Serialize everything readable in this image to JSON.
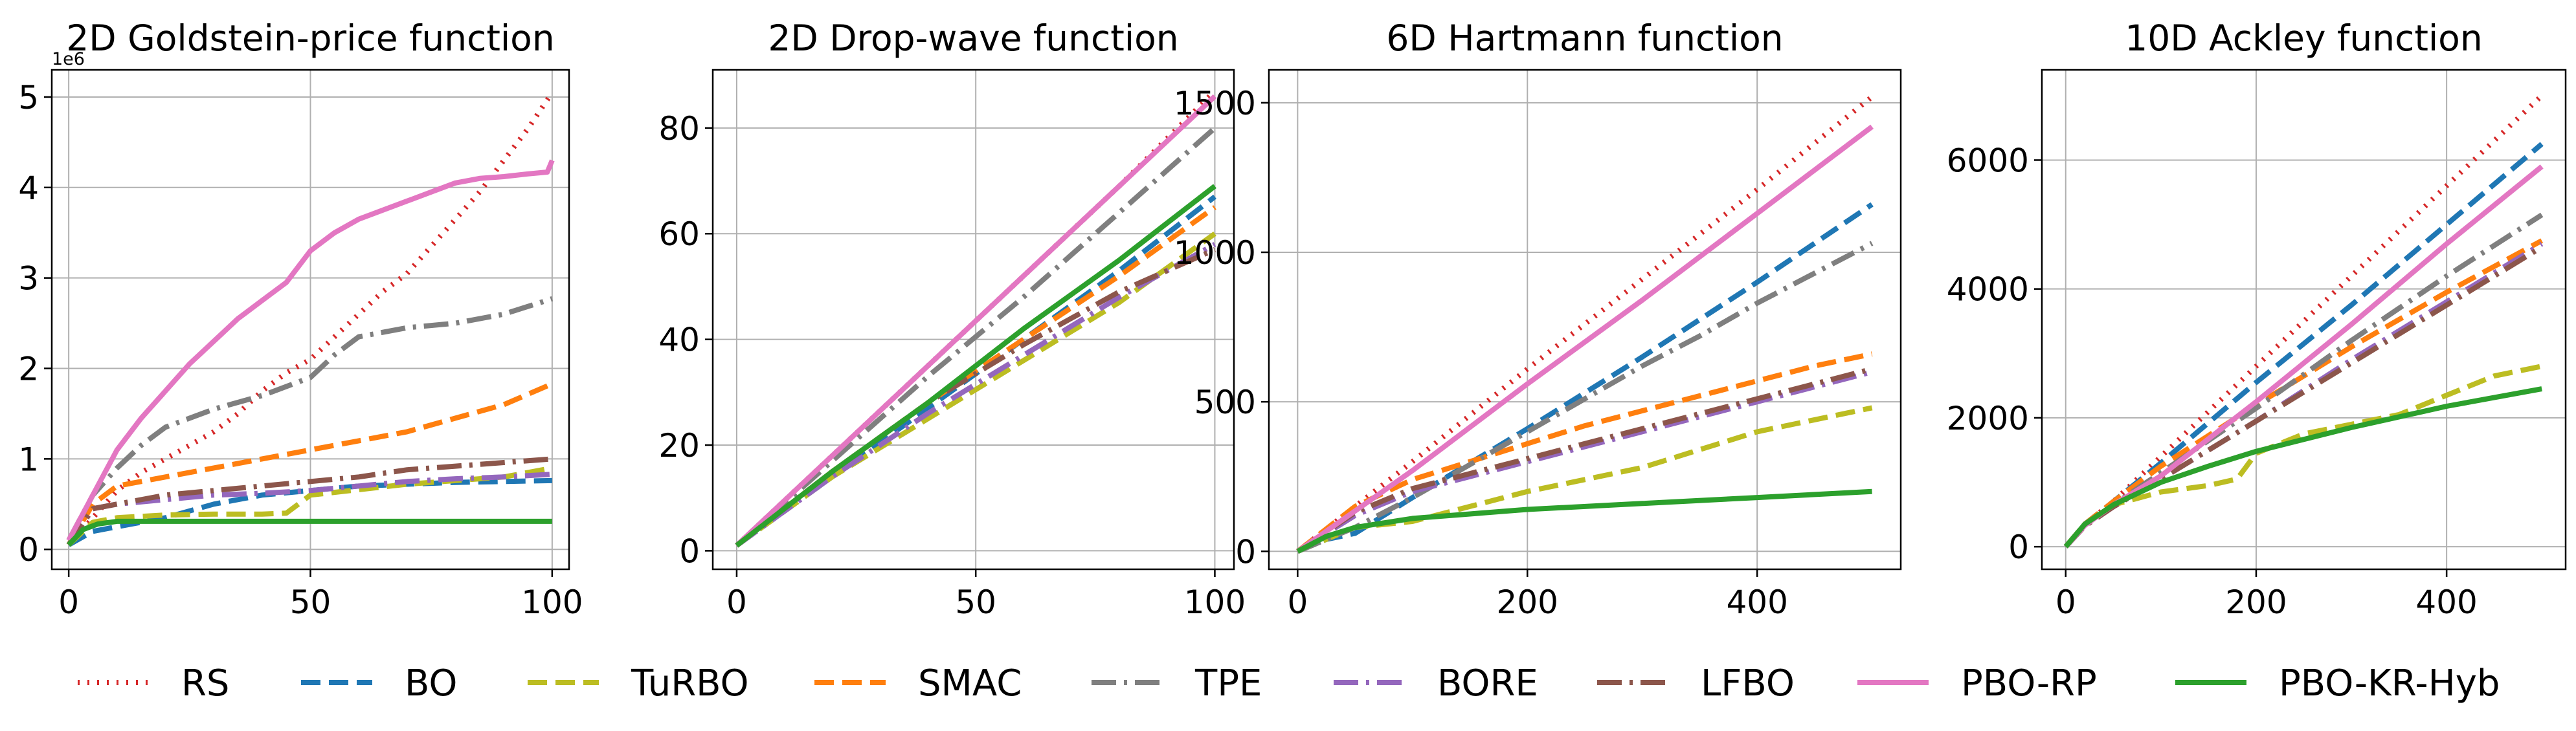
{
  "figure": {
    "series_styles": [
      {
        "name": "RS",
        "color": "#d62728",
        "dash": "3 12",
        "width": 8
      },
      {
        "name": "BO",
        "color": "#1f77b4",
        "dash": "30 13",
        "width": 8
      },
      {
        "name": "TuRBO",
        "color": "#bcbd22",
        "dash": "30 13",
        "width": 8
      },
      {
        "name": "SMAC",
        "color": "#ff7f0e",
        "dash": "30 13",
        "width": 8
      },
      {
        "name": "TPE",
        "color": "#7f7f7f",
        "dash": "38 12 5 12",
        "width": 8
      },
      {
        "name": "BORE",
        "color": "#9467bd",
        "dash": "38 12 5 12",
        "width": 8
      },
      {
        "name": "LFBO",
        "color": "#8c564b",
        "dash": "38 12 5 12",
        "width": 8
      },
      {
        "name": "PBO-RP",
        "color": "#e377c2",
        "dash": "",
        "width": 8
      },
      {
        "name": "PBO-KR-Hyb",
        "color": "#2ca02c",
        "dash": "",
        "width": 8
      }
    ],
    "legend": [
      "RS",
      "BO",
      "TuRBO",
      "SMAC",
      "TPE",
      "BORE",
      "LFBO",
      "PBO-RP",
      "PBO-KR-Hyb"
    ]
  },
  "chart_data": [
    {
      "type": "line",
      "title": "2D Goldstein-price function",
      "xlabel": "",
      "ylabel": "",
      "xlim": [
        -3.5,
        103.5
      ],
      "ylim": [
        -0.22,
        5.3
      ],
      "xticks": [
        0,
        50,
        100
      ],
      "yticks": [
        0,
        1,
        2,
        3,
        4,
        5
      ],
      "y_offset_label": "1e6",
      "grid": true,
      "series": [
        {
          "name": "RS",
          "x": [
            0,
            5,
            10,
            15,
            20,
            25,
            30,
            35,
            40,
            45,
            50,
            55,
            60,
            65,
            70,
            75,
            80,
            85,
            90,
            95,
            100
          ],
          "values": [
            0.05,
            0.35,
            0.65,
            0.85,
            1.0,
            1.15,
            1.3,
            1.5,
            1.75,
            1.95,
            2.1,
            2.35,
            2.6,
            2.85,
            3.05,
            3.35,
            3.65,
            3.95,
            4.3,
            4.65,
            5.05
          ]
        },
        {
          "name": "BO",
          "x": [
            0,
            5,
            10,
            20,
            30,
            40,
            50,
            60,
            70,
            80,
            90,
            100
          ],
          "values": [
            0.05,
            0.2,
            0.25,
            0.35,
            0.5,
            0.6,
            0.65,
            0.7,
            0.72,
            0.74,
            0.75,
            0.76
          ]
        },
        {
          "name": "TuRBO",
          "x": [
            0,
            5,
            10,
            20,
            30,
            40,
            45,
            50,
            60,
            70,
            80,
            90,
            100
          ],
          "values": [
            0.05,
            0.3,
            0.35,
            0.38,
            0.39,
            0.39,
            0.4,
            0.6,
            0.66,
            0.72,
            0.76,
            0.8,
            0.9
          ]
        },
        {
          "name": "SMAC",
          "x": [
            0,
            5,
            10,
            20,
            30,
            40,
            50,
            60,
            70,
            80,
            90,
            100
          ],
          "values": [
            0.05,
            0.5,
            0.7,
            0.8,
            0.9,
            1.0,
            1.1,
            1.2,
            1.3,
            1.45,
            1.6,
            1.83
          ]
        },
        {
          "name": "TPE",
          "x": [
            0,
            5,
            10,
            15,
            20,
            30,
            40,
            50,
            55,
            60,
            70,
            80,
            90,
            100
          ],
          "values": [
            0.1,
            0.6,
            0.9,
            1.15,
            1.35,
            1.55,
            1.7,
            1.9,
            2.15,
            2.35,
            2.45,
            2.5,
            2.6,
            2.77
          ]
        },
        {
          "name": "BORE",
          "x": [
            0,
            5,
            10,
            20,
            30,
            40,
            50,
            60,
            70,
            80,
            90,
            100
          ],
          "values": [
            0.05,
            0.45,
            0.5,
            0.55,
            0.6,
            0.62,
            0.65,
            0.7,
            0.75,
            0.78,
            0.8,
            0.83
          ]
        },
        {
          "name": "LFBO",
          "x": [
            0,
            5,
            10,
            20,
            30,
            40,
            50,
            60,
            70,
            80,
            90,
            100
          ],
          "values": [
            0.05,
            0.45,
            0.5,
            0.6,
            0.65,
            0.7,
            0.75,
            0.8,
            0.88,
            0.92,
            0.96,
            1.0
          ]
        },
        {
          "name": "PBO-RP",
          "x": [
            0,
            3,
            6,
            10,
            15,
            20,
            25,
            30,
            35,
            40,
            45,
            50,
            55,
            60,
            65,
            70,
            75,
            80,
            85,
            90,
            95,
            99,
            100
          ],
          "values": [
            0.1,
            0.4,
            0.7,
            1.1,
            1.45,
            1.75,
            2.05,
            2.3,
            2.55,
            2.75,
            2.95,
            3.3,
            3.5,
            3.65,
            3.75,
            3.85,
            3.95,
            4.05,
            4.1,
            4.12,
            4.15,
            4.17,
            4.3
          ]
        },
        {
          "name": "PBO-KR-Hyb",
          "x": [
            0,
            3,
            6,
            10,
            20,
            40,
            60,
            80,
            100
          ],
          "values": [
            0.05,
            0.22,
            0.28,
            0.31,
            0.31,
            0.31,
            0.31,
            0.31,
            0.31
          ]
        }
      ]
    },
    {
      "type": "line",
      "title": "2D Drop-wave function",
      "xlabel": "",
      "ylabel": "",
      "xlim": [
        -5,
        104
      ],
      "ylim": [
        -3.5,
        91
      ],
      "xticks": [
        0,
        50,
        100
      ],
      "yticks": [
        0,
        20,
        40,
        60,
        80
      ],
      "grid": true,
      "series": [
        {
          "name": "RS",
          "x": [
            0,
            20,
            40,
            60,
            80,
            100
          ],
          "values": [
            1,
            18,
            35,
            52,
            69,
            87
          ]
        },
        {
          "name": "BO",
          "x": [
            0,
            20,
            40,
            60,
            80,
            100
          ],
          "values": [
            1,
            14,
            27,
            40,
            53,
            67
          ]
        },
        {
          "name": "TuRBO",
          "x": [
            0,
            20,
            40,
            60,
            80,
            100
          ],
          "values": [
            1,
            14,
            25,
            36,
            47,
            60
          ]
        },
        {
          "name": "SMAC",
          "x": [
            0,
            20,
            40,
            60,
            80,
            100
          ],
          "values": [
            1,
            15,
            28,
            40,
            52,
            65
          ]
        },
        {
          "name": "TPE",
          "x": [
            0,
            20,
            40,
            60,
            80,
            100
          ],
          "values": [
            1,
            17,
            33,
            48,
            64,
            80
          ]
        },
        {
          "name": "BORE",
          "x": [
            0,
            20,
            40,
            60,
            80,
            100
          ],
          "values": [
            1,
            14,
            26,
            37,
            48,
            58
          ]
        },
        {
          "name": "LFBO",
          "x": [
            0,
            20,
            40,
            60,
            80,
            100
          ],
          "values": [
            1,
            15,
            28,
            39,
            49,
            57
          ]
        },
        {
          "name": "PBO-RP",
          "x": [
            0,
            20,
            40,
            60,
            80,
            100
          ],
          "values": [
            1,
            18,
            35,
            52,
            69,
            86
          ]
        },
        {
          "name": "PBO-KR-Hyb",
          "x": [
            0,
            20,
            40,
            60,
            80,
            100
          ],
          "values": [
            1,
            15,
            28,
            42,
            55,
            69
          ]
        }
      ]
    },
    {
      "type": "line",
      "title": "6D Hartmann function",
      "xlabel": "",
      "ylabel": "",
      "xlim": [
        -25,
        525
      ],
      "ylim": [
        -60,
        1610
      ],
      "xticks": [
        0,
        200,
        400
      ],
      "yticks": [
        0,
        500,
        1000,
        1500
      ],
      "grid": true,
      "series": [
        {
          "name": "RS",
          "x": [
            0,
            100,
            200,
            300,
            400,
            500
          ],
          "values": [
            0,
            300,
            610,
            910,
            1210,
            1520
          ]
        },
        {
          "name": "BO",
          "x": [
            0,
            25,
            50,
            100,
            200,
            300,
            400,
            500
          ],
          "values": [
            0,
            40,
            60,
            180,
            410,
            650,
            900,
            1160
          ]
        },
        {
          "name": "TuRBO",
          "x": [
            0,
            50,
            100,
            150,
            200,
            250,
            300,
            350,
            400,
            450,
            500
          ],
          "values": [
            0,
            80,
            100,
            150,
            200,
            240,
            280,
            340,
            400,
            440,
            480
          ]
        },
        {
          "name": "SMAC",
          "x": [
            0,
            50,
            100,
            150,
            200,
            250,
            300,
            350,
            400,
            450,
            500
          ],
          "values": [
            0,
            150,
            240,
            300,
            360,
            420,
            470,
            520,
            570,
            620,
            660
          ]
        },
        {
          "name": "TPE",
          "x": [
            0,
            50,
            100,
            150,
            200,
            250,
            300,
            350,
            400,
            450,
            500
          ],
          "values": [
            0,
            80,
            180,
            290,
            400,
            510,
            620,
            720,
            830,
            930,
            1030
          ]
        },
        {
          "name": "BORE",
          "x": [
            0,
            50,
            100,
            150,
            200,
            250,
            300,
            350,
            400,
            450,
            500
          ],
          "values": [
            0,
            120,
            200,
            250,
            300,
            350,
            400,
            450,
            500,
            550,
            600
          ]
        },
        {
          "name": "LFBO",
          "x": [
            0,
            50,
            100,
            150,
            200,
            250,
            300,
            350,
            400,
            450,
            500
          ],
          "values": [
            0,
            130,
            210,
            260,
            310,
            360,
            410,
            460,
            510,
            560,
            610
          ]
        },
        {
          "name": "PBO-RP",
          "x": [
            0,
            100,
            200,
            300,
            400,
            500
          ],
          "values": [
            0,
            270,
            560,
            840,
            1130,
            1420
          ]
        },
        {
          "name": "PBO-KR-Hyb",
          "x": [
            0,
            25,
            50,
            100,
            150,
            200,
            300,
            400,
            500
          ],
          "values": [
            0,
            50,
            80,
            110,
            125,
            140,
            160,
            180,
            200
          ]
        }
      ]
    },
    {
      "type": "line",
      "title": "10D Ackley function",
      "xlabel": "",
      "ylabel": "",
      "xlim": [
        -25,
        525
      ],
      "ylim": [
        -350,
        7400
      ],
      "xticks": [
        0,
        200,
        400
      ],
      "yticks": [
        0,
        2000,
        4000,
        6000
      ],
      "grid": true,
      "series": [
        {
          "name": "RS",
          "x": [
            0,
            20,
            50,
            100,
            200,
            300,
            400,
            500
          ],
          "values": [
            0,
            350,
            700,
            1400,
            2800,
            4200,
            5600,
            7000
          ]
        },
        {
          "name": "BO",
          "x": [
            0,
            20,
            50,
            100,
            200,
            300,
            400,
            500
          ],
          "values": [
            0,
            350,
            700,
            1300,
            2550,
            3750,
            5000,
            6250
          ]
        },
        {
          "name": "TuRBO",
          "x": [
            0,
            20,
            50,
            100,
            150,
            180,
            200,
            250,
            300,
            350,
            400,
            450,
            500
          ],
          "values": [
            0,
            350,
            650,
            850,
            950,
            1050,
            1450,
            1750,
            1900,
            2050,
            2350,
            2650,
            2800
          ]
        },
        {
          "name": "SMAC",
          "x": [
            0,
            20,
            50,
            100,
            200,
            300,
            400,
            500
          ],
          "values": [
            0,
            350,
            700,
            1250,
            2200,
            3100,
            3950,
            4750
          ]
        },
        {
          "name": "TPE",
          "x": [
            0,
            20,
            50,
            100,
            200,
            300,
            400,
            500
          ],
          "values": [
            0,
            330,
            650,
            1150,
            2150,
            3200,
            4200,
            5150
          ]
        },
        {
          "name": "BORE",
          "x": [
            0,
            20,
            50,
            100,
            200,
            300,
            400,
            500
          ],
          "values": [
            0,
            320,
            620,
            1050,
            1950,
            2900,
            3800,
            4700
          ]
        },
        {
          "name": "LFBO",
          "x": [
            0,
            20,
            50,
            100,
            200,
            300,
            400,
            500
          ],
          "values": [
            0,
            320,
            620,
            1050,
            1950,
            2850,
            3750,
            4650
          ]
        },
        {
          "name": "PBO-RP",
          "x": [
            0,
            20,
            50,
            100,
            200,
            300,
            400,
            500
          ],
          "values": [
            0,
            330,
            650,
            1100,
            2250,
            3450,
            4700,
            5900
          ]
        },
        {
          "name": "PBO-KR-Hyb",
          "x": [
            0,
            20,
            50,
            100,
            150,
            200,
            300,
            400,
            500
          ],
          "values": [
            0,
            350,
            650,
            1000,
            1250,
            1480,
            1850,
            2180,
            2450
          ]
        }
      ]
    }
  ]
}
